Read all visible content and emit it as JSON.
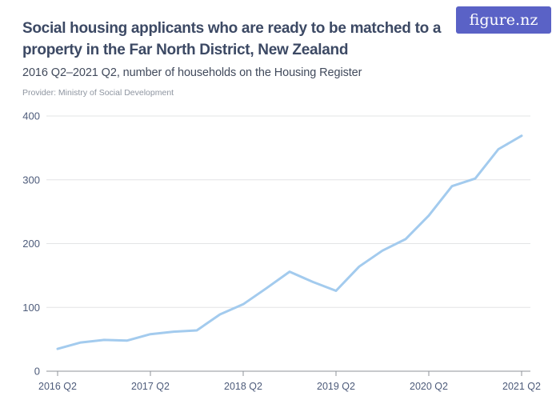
{
  "header": {
    "title_line1": "Social housing applicants who are ready to be matched to a",
    "title_line2": "property in the Far North District, New Zealand",
    "subtitle": "2016 Q2–2021 Q2, number of households on the Housing Register",
    "provider": "Provider: Ministry of Social Development",
    "logo_text": "figure.nz"
  },
  "colors": {
    "line": "#a3cbee",
    "grid": "#e3e4e6",
    "axis": "#8f939a",
    "tick_label": "#4d5b7a",
    "title": "#3c4964",
    "logo_bg": "#5a62c6",
    "logo_text": "#ffffff"
  },
  "chart_data": {
    "type": "line",
    "title": "Social housing applicants who are ready to be matched to a property in the Far North District, New Zealand",
    "subtitle": "2016 Q2–2021 Q2, number of households on the Housing Register",
    "xlabel": "",
    "ylabel": "",
    "x": [
      "2016 Q2",
      "2016 Q3",
      "2016 Q4",
      "2017 Q1",
      "2017 Q2",
      "2017 Q3",
      "2017 Q4",
      "2018 Q1",
      "2018 Q2",
      "2018 Q3",
      "2018 Q4",
      "2019 Q1",
      "2019 Q2",
      "2019 Q3",
      "2019 Q4",
      "2020 Q1",
      "2020 Q2",
      "2020 Q3",
      "2020 Q4",
      "2021 Q1",
      "2021 Q2"
    ],
    "series": [
      {
        "name": "Households on the Housing Register ready to be matched",
        "values": [
          35,
          45,
          49,
          48,
          58,
          62,
          64,
          89,
          105,
          130,
          156,
          140,
          126,
          164,
          189,
          207,
          244,
          290,
          302,
          348,
          369
        ]
      }
    ],
    "x_tick_labels": [
      "2016 Q2",
      "2017 Q2",
      "2018 Q2",
      "2019 Q2",
      "2020 Q2",
      "2021 Q2"
    ],
    "y_ticks": [
      0,
      100,
      200,
      300,
      400
    ],
    "ylim": [
      0,
      400
    ],
    "grid": "horizontal",
    "legend": "none"
  }
}
